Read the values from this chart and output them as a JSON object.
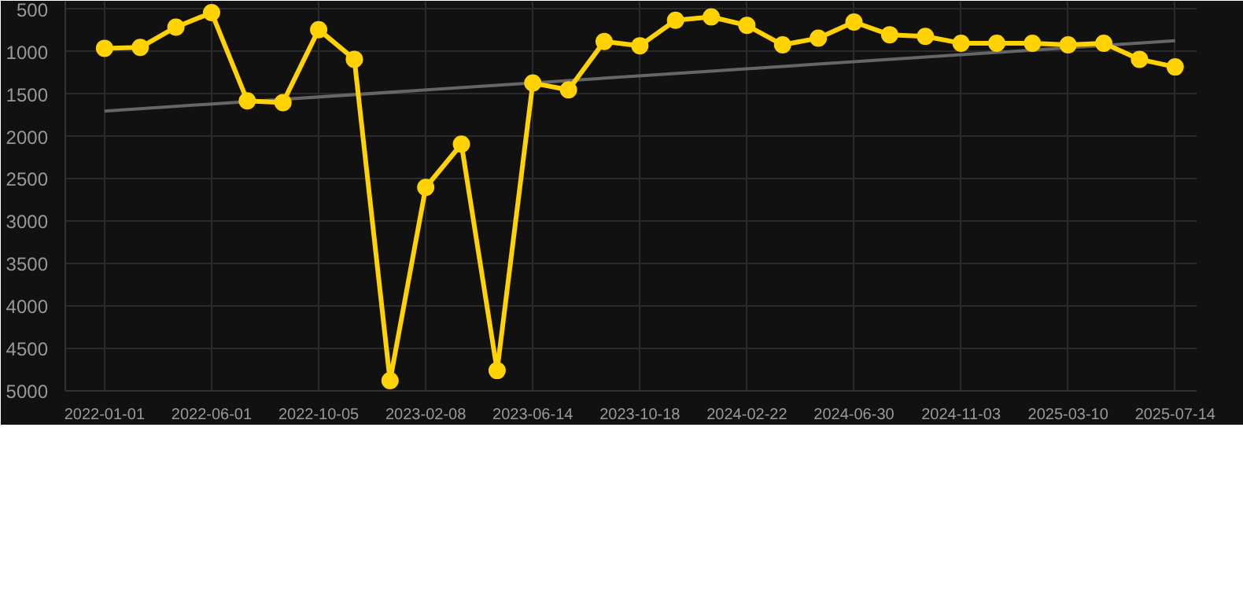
{
  "chart_data": {
    "type": "line",
    "categories": [
      "2022-01-01",
      null,
      null,
      "2022-06-01",
      null,
      null,
      "2022-10-05",
      null,
      null,
      "2023-02-08",
      null,
      null,
      "2023-06-14",
      null,
      null,
      "2023-10-18",
      null,
      null,
      "2024-02-22",
      null,
      null,
      "2024-06-30",
      null,
      null,
      "2024-11-03",
      null,
      null,
      "2025-03-10",
      null,
      null,
      "2025-07-14"
    ],
    "series": [
      {
        "color": "#ffd200",
        "marker": "circle",
        "line_style": "solid",
        "values": [
          960,
          950,
          710,
          540,
          1580,
          1600,
          740,
          1090,
          4880,
          2600,
          2090,
          4760,
          1370,
          1450,
          880,
          930,
          630,
          590,
          690,
          920,
          840,
          650,
          800,
          820,
          900,
          900,
          900,
          920,
          900,
          1090,
          1180
        ]
      },
      {
        "type": "line",
        "color": "#666666",
        "marker": "none",
        "line_style": "solid",
        "values": [
          1700,
          null,
          null,
          null,
          null,
          null,
          null,
          null,
          null,
          null,
          null,
          null,
          null,
          null,
          null,
          null,
          null,
          null,
          null,
          null,
          null,
          null,
          null,
          null,
          null,
          null,
          null,
          null,
          null,
          null,
          870
        ]
      }
    ],
    "ylim": [
      5000,
      400
    ],
    "yticks": [
      500,
      1000,
      1500,
      2000,
      2500,
      3000,
      3500,
      4000,
      4500,
      5000
    ],
    "grid": true
  }
}
